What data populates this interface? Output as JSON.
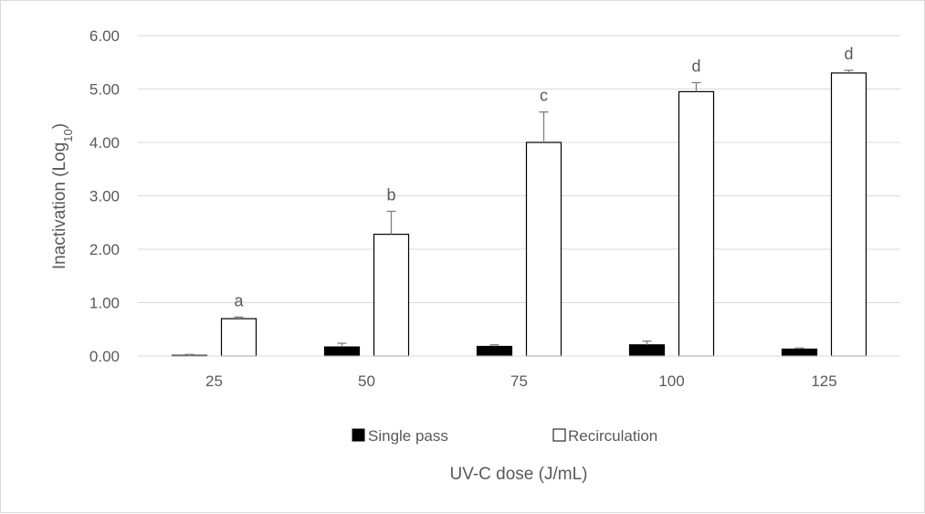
{
  "chart_data": {
    "type": "bar",
    "xlabel": "UV-C dose (J/mL)",
    "ylabel_main": "Inactivation (Log",
    "ylabel_sub": "10",
    "ylabel_close": ")",
    "categories": [
      "25",
      "50",
      "75",
      "100",
      "125"
    ],
    "ylim": [
      0,
      6
    ],
    "ytick_values": [
      0,
      1,
      2,
      3,
      4,
      5,
      6
    ],
    "ytick_labels": [
      "0.00",
      "1.00",
      "2.00",
      "3.00",
      "4.00",
      "5.00",
      "6.00"
    ],
    "grid": true,
    "legend_position": "bottom",
    "series": [
      {
        "name": "Single pass",
        "fill": "#000000",
        "values": [
          0.0,
          0.17,
          0.18,
          0.21,
          0.13
        ],
        "errors": [
          0.03,
          0.07,
          0.03,
          0.07,
          0.02
        ]
      },
      {
        "name": "Recirculation",
        "fill": "#ffffff",
        "values": [
          0.7,
          2.28,
          4.0,
          4.95,
          5.3
        ],
        "errors": [
          0.03,
          0.43,
          0.57,
          0.17,
          0.05
        ]
      }
    ],
    "annotations": [
      "a",
      "b",
      "c",
      "d",
      "d"
    ]
  }
}
